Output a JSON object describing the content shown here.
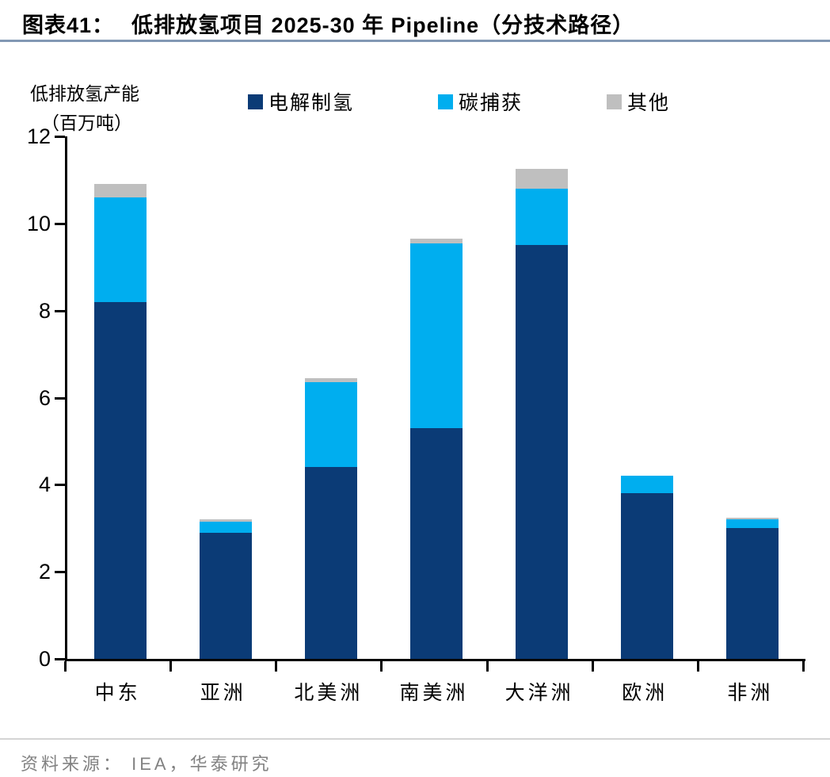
{
  "title": {
    "prefix": "图表41：",
    "text": "低排放氢项目 2025-30 年 Pipeline（分技术路径）"
  },
  "footer": {
    "source_label": "资料来源：",
    "source_text": "IEA，华泰研究"
  },
  "colors": {
    "electrolysis": "#0B3B76",
    "carbon_capture": "#00AEEF",
    "other": "#BFBFBF",
    "title_divider": "#8298B4",
    "footer_rule": "#D4D4D4",
    "footer_text": "#828282",
    "axis": "#000000"
  },
  "chart_data": {
    "type": "bar",
    "stacked": true,
    "title": "低排放氢项目 2025-30 年 Pipeline（分技术路径）",
    "ylabel_line1": "低排放氢产能",
    "ylabel_line2": "（百万吨）",
    "xlabel": "",
    "categories": [
      "中东",
      "亚洲",
      "北美洲",
      "南美洲",
      "大洋洲",
      "欧洲",
      "非洲"
    ],
    "series": [
      {
        "name": "电解制氢",
        "color": "#0B3B76",
        "values": [
          8.2,
          2.9,
          4.4,
          5.3,
          9.5,
          3.8,
          3.0
        ]
      },
      {
        "name": "碳捕获",
        "color": "#00AEEF",
        "values": [
          2.4,
          0.25,
          1.95,
          4.25,
          1.3,
          0.4,
          0.2
        ]
      },
      {
        "name": "其他",
        "color": "#BFBFBF",
        "values": [
          0.3,
          0.05,
          0.1,
          0.1,
          0.45,
          0.0,
          0.05
        ]
      }
    ],
    "totals": [
      10.9,
      3.2,
      6.45,
      9.65,
      11.25,
      4.2,
      3.25
    ],
    "ylim": [
      0,
      12
    ],
    "yticks": [
      0,
      2,
      4,
      6,
      8,
      10,
      12
    ],
    "grid": false,
    "legend_position": "top"
  }
}
